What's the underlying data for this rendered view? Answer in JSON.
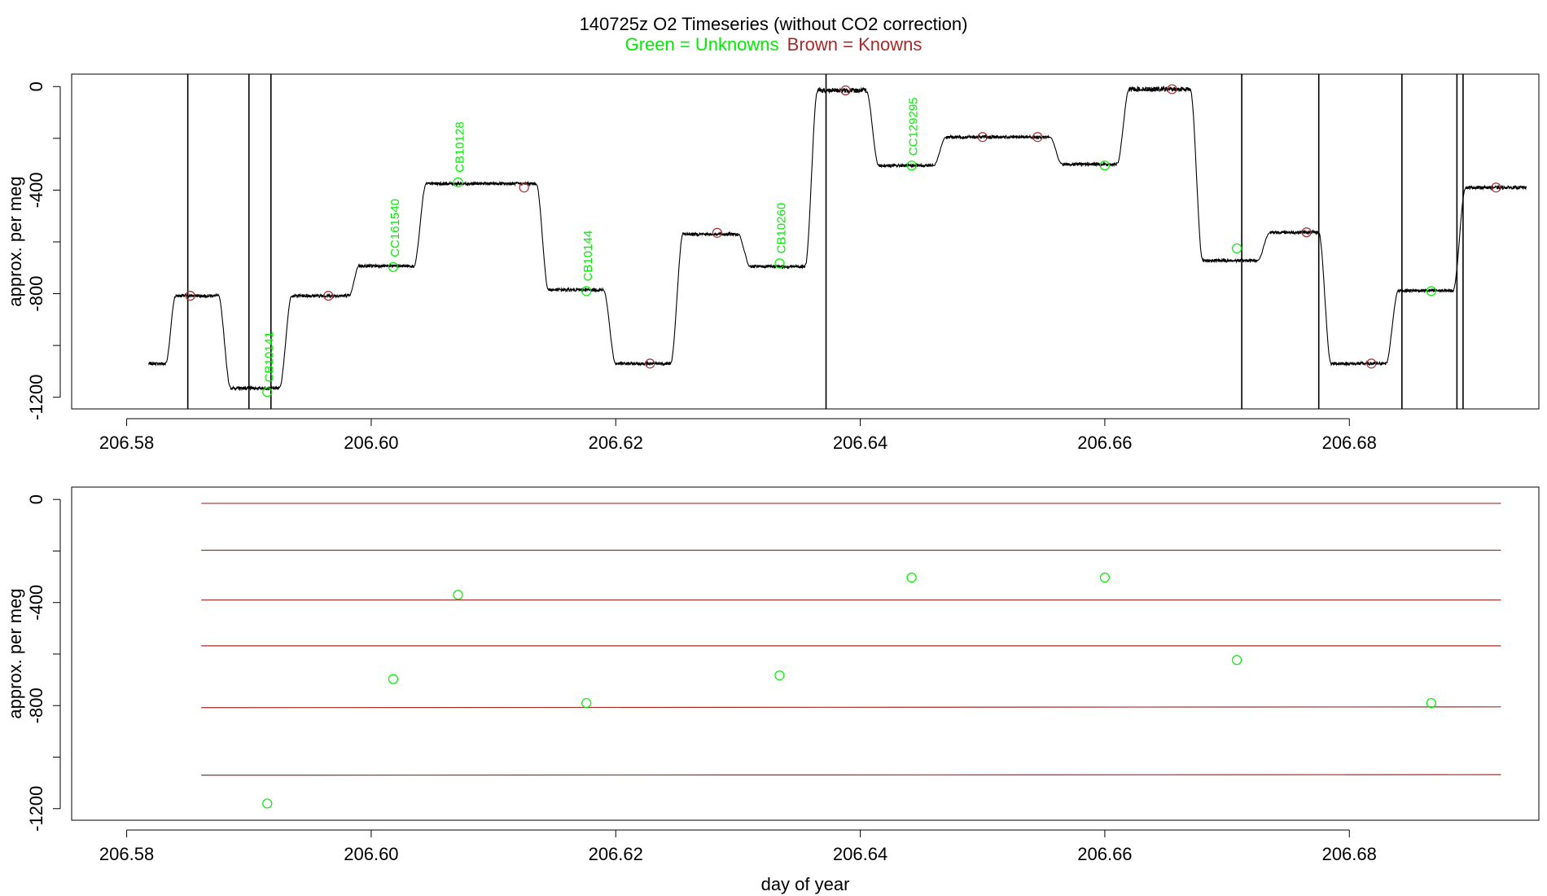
{
  "title": "140725z    O2 Timeseries (without CO2 correction)",
  "subtitle_unknowns": "Green = Unknowns",
  "subtitle_knowns": "Brown = Knowns",
  "colors": {
    "unknown": "#00ee00",
    "known": "#a52a2a",
    "trace": "#000000",
    "axis": "#000000"
  },
  "chart_data": [
    {
      "type": "line",
      "ylabel": "approx. per meg",
      "xlabel": "",
      "xlim": [
        206.5755,
        206.6955
      ],
      "ylim": [
        -1245,
        48
      ],
      "x_ticks": [
        "206.58",
        "206.60",
        "206.62",
        "206.64",
        "206.66",
        "206.68"
      ],
      "x_tick_values": [
        206.58,
        206.6,
        206.62,
        206.64,
        206.66,
        206.68
      ],
      "y_ticks": [
        "0",
        "-400",
        "-800",
        "-1200"
      ],
      "y_tick_values": [
        0,
        -400,
        -800,
        -1200
      ],
      "trace_levels": [
        {
          "x": [
            206.5818,
            206.5832
          ],
          "y": -1070
        },
        {
          "x": [
            206.584,
            206.5875
          ],
          "y": -808
        },
        {
          "x": [
            206.5885,
            206.5925
          ],
          "y": -1165
        },
        {
          "x": [
            206.5935,
            206.5982
          ],
          "y": -808
        },
        {
          "x": [
            206.599,
            206.6035
          ],
          "y": -693
        },
        {
          "x": [
            206.6045,
            206.6135
          ],
          "y": -375
        },
        {
          "x": [
            206.6145,
            206.619
          ],
          "y": -785
        },
        {
          "x": [
            206.62,
            206.6245
          ],
          "y": -1070
        },
        {
          "x": [
            206.6255,
            206.63
          ],
          "y": -570
        },
        {
          "x": [
            206.631,
            206.6355
          ],
          "y": -695
        },
        {
          "x": [
            206.6365,
            206.6405
          ],
          "y": -15
        },
        {
          "x": [
            206.6415,
            206.646
          ],
          "y": -305
        },
        {
          "x": [
            206.647,
            206.6555
          ],
          "y": -195
        },
        {
          "x": [
            206.6565,
            206.661
          ],
          "y": -300
        },
        {
          "x": [
            206.662,
            206.667
          ],
          "y": -10
        },
        {
          "x": [
            206.668,
            206.6725
          ],
          "y": -672
        },
        {
          "x": [
            206.6735,
            206.6775
          ],
          "y": -563
        },
        {
          "x": [
            206.6785,
            206.683
          ],
          "y": -1070
        },
        {
          "x": [
            206.684,
            206.6885
          ],
          "y": -788
        },
        {
          "x": [
            206.6895,
            206.6945
          ],
          "y": -390
        }
      ],
      "spikes": [
        206.585,
        206.59,
        206.5918,
        206.6372,
        206.6712,
        206.6775,
        206.6843,
        206.6888,
        206.6893
      ],
      "known_points": [
        {
          "x": 206.5852,
          "y": -808
        },
        {
          "x": 206.5965,
          "y": -808
        },
        {
          "x": 206.6125,
          "y": -390
        },
        {
          "x": 206.6228,
          "y": -1070
        },
        {
          "x": 206.6283,
          "y": -565
        },
        {
          "x": 206.6388,
          "y": -15
        },
        {
          "x": 206.65,
          "y": -195
        },
        {
          "x": 206.6545,
          "y": -195
        },
        {
          "x": 206.6655,
          "y": -10
        },
        {
          "x": 206.6765,
          "y": -563
        },
        {
          "x": 206.6818,
          "y": -1070
        },
        {
          "x": 206.692,
          "y": -390
        }
      ],
      "unknown_points": [
        {
          "x": 206.5915,
          "y": -1180,
          "label": "CB10141"
        },
        {
          "x": 206.6018,
          "y": -697,
          "label": "CC161540"
        },
        {
          "x": 206.6071,
          "y": -370,
          "label": "CB10128"
        },
        {
          "x": 206.6176,
          "y": -790,
          "label": "CB10144"
        },
        {
          "x": 206.6334,
          "y": -683,
          "label": "CB10260"
        },
        {
          "x": 206.6442,
          "y": -305,
          "label": "CC129295"
        },
        {
          "x": 206.66,
          "y": -305,
          "label": ""
        },
        {
          "x": 206.6708,
          "y": -625,
          "label": ""
        },
        {
          "x": 206.6867,
          "y": -790,
          "label": ""
        }
      ]
    },
    {
      "type": "scatter",
      "ylabel": "approx. per meg",
      "xlabel": "day of year",
      "xlim": [
        206.5755,
        206.6955
      ],
      "ylim": [
        -1245,
        48
      ],
      "x_ticks": [
        "206.58",
        "206.60",
        "206.62",
        "206.64",
        "206.66",
        "206.68"
      ],
      "x_tick_values": [
        206.58,
        206.6,
        206.62,
        206.64,
        206.66,
        206.68
      ],
      "y_ticks": [
        "0",
        "-400",
        "-800",
        "-1200"
      ],
      "y_tick_values": [
        0,
        -400,
        -800,
        -1200
      ],
      "known_lines": [
        {
          "x": [
            206.5861,
            206.6924
          ],
          "y": [
            -15,
            -15
          ]
        },
        {
          "x": [
            206.5861,
            206.6924
          ],
          "y": [
            -197,
            -197
          ]
        },
        {
          "x": [
            206.5861,
            206.6924
          ],
          "y": [
            -390,
            -390
          ]
        },
        {
          "x": [
            206.5861,
            206.6924
          ],
          "y": [
            -568,
            -568
          ]
        },
        {
          "x": [
            206.5861,
            206.6924
          ],
          "y": [
            -808,
            -805
          ]
        },
        {
          "x": [
            206.5861,
            206.6924
          ],
          "y": [
            -1070,
            -1068
          ]
        }
      ],
      "unknown_points": [
        {
          "x": 206.5915,
          "y": -1180
        },
        {
          "x": 206.6018,
          "y": -697
        },
        {
          "x": 206.6071,
          "y": -370
        },
        {
          "x": 206.6176,
          "y": -790
        },
        {
          "x": 206.6334,
          "y": -683
        },
        {
          "x": 206.6442,
          "y": -303
        },
        {
          "x": 206.66,
          "y": -303
        },
        {
          "x": 206.6708,
          "y": -623
        },
        {
          "x": 206.6867,
          "y": -790
        }
      ]
    }
  ]
}
